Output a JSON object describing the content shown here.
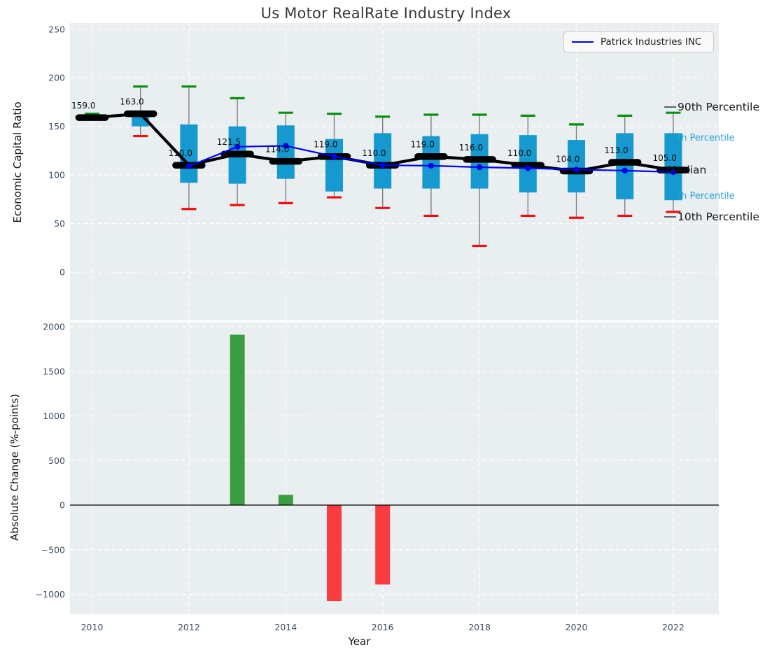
{
  "title": "Us Motor RealRate Industry Index",
  "legend": {
    "label": "Patrick Industries INC"
  },
  "axes": {
    "top_ylabel": "Economic Capital Ratio",
    "bottom_ylabel": "Absolute Change (%-points)",
    "xlabel": "Year"
  },
  "annotations": [
    {
      "id": "p90",
      "text": "90th Percentile",
      "style": "dark"
    },
    {
      "id": "p75",
      "text": "th Percentile",
      "style": "cyan"
    },
    {
      "id": "median",
      "text": "Median",
      "style": "dark"
    },
    {
      "id": "p25",
      "text": "th Percentile",
      "style": "cyan"
    },
    {
      "id": "p10",
      "text": "10th Percentile",
      "style": "dark"
    }
  ],
  "colors": {
    "plot_bg": "#e9eef1",
    "grid": "#ffffff",
    "box": "#1699cf",
    "whisker": "#808080",
    "cap_high": "#0a9010",
    "cap_low": "#ef0f0f",
    "median": "#000000",
    "company_line": "#0000ee",
    "bar_up": "#3a9e41",
    "bar_down": "#fa3b40",
    "tick": "#3c4f63",
    "annotation_dark": "#1a1a1a",
    "annotation_cyan": "#25a5da",
    "value_label": "#0d0d0d"
  },
  "chart_data": [
    {
      "type": "boxplot",
      "title": "Us Motor RealRate Industry Index",
      "ylabel": "Economic Capital Ratio",
      "ylim": [
        -50,
        256
      ],
      "grid": true,
      "legend_position": "upper right",
      "ytick_values": [
        250,
        200,
        150,
        100,
        50,
        0
      ],
      "ytick_labels": [
        "250",
        "200",
        "150",
        "100",
        "50",
        "0"
      ],
      "years": [
        2010,
        2011,
        2012,
        2013,
        2014,
        2015,
        2016,
        2017,
        2018,
        2019,
        2020,
        2021,
        2022
      ],
      "series": {
        "p90": [
          163,
          191,
          191,
          179,
          164,
          163,
          160,
          162,
          162,
          161,
          152,
          161,
          164
        ],
        "p75": [
          160,
          166,
          152,
          150,
          151,
          137,
          143,
          140,
          142,
          141,
          136,
          143,
          143
        ],
        "median": [
          159,
          163,
          110,
          121.5,
          114,
          119,
          110,
          119,
          116,
          110,
          104,
          113,
          105
        ],
        "p25": [
          158,
          150,
          92,
          91,
          96,
          83,
          86,
          86,
          86,
          82,
          82,
          75,
          74
        ],
        "p10": [
          159,
          140,
          65,
          69,
          71,
          77,
          66,
          58,
          27,
          58,
          56,
          58,
          62
        ],
        "company": {
          "name": "Patrick Industries INC",
          "values": [
            null,
            null,
            109,
            129,
            130,
            119,
            110,
            109.5,
            108,
            107,
            105.5,
            104.5,
            103
          ]
        }
      },
      "median_labels": [
        "159.0",
        "163.0",
        "110.0",
        "121.5",
        "114.0",
        "119.0",
        "110.0",
        "119.0",
        "116.0",
        "110.0",
        "104.0",
        "113.0",
        "105.0"
      ]
    },
    {
      "type": "bar",
      "ylabel": "Absolute Change (%-points)",
      "xlabel": "Year",
      "ylim": [
        -1240,
        2050
      ],
      "grid": true,
      "years": [
        2010,
        2011,
        2012,
        2013,
        2014,
        2015,
        2016,
        2017,
        2018,
        2019,
        2020,
        2021,
        2022
      ],
      "values": [
        0,
        0,
        0,
        1910,
        115,
        -1075,
        -890,
        0,
        0,
        0,
        0,
        0,
        0
      ],
      "ytick_values": [
        2000,
        1500,
        1000,
        500,
        0,
        -500,
        -1000
      ],
      "ytick_labels": [
        "2000",
        "1500",
        "1000",
        "500",
        "0",
        "−500",
        "−1000"
      ],
      "xtick_values": [
        2010,
        2012,
        2014,
        2016,
        2018,
        2020,
        2022
      ],
      "xtick_labels": [
        "2010",
        "2012",
        "2014",
        "2016",
        "2018",
        "2020",
        "2022"
      ]
    }
  ]
}
